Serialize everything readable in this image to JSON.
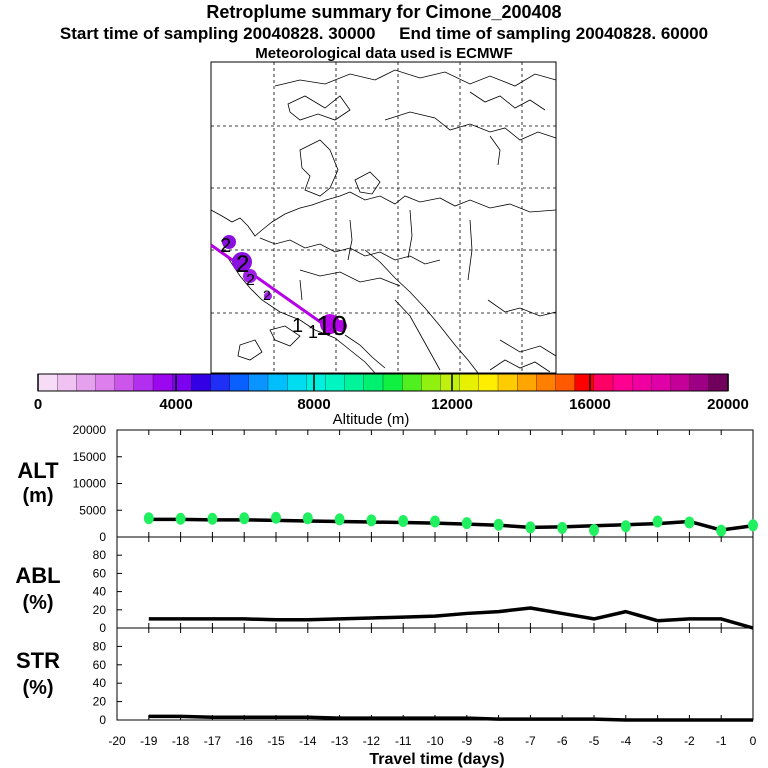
{
  "header": {
    "title": "Retroplume summary for Cimone_200408",
    "sampling_line": "Start time of sampling 20040828. 30000     End time of sampling 20040828. 60000",
    "met_line": "Meteorological data used is ECMWF"
  },
  "map": {
    "plume_color": "#b400e6",
    "plume_labels": [
      "2",
      "2",
      "2",
      "2",
      "1",
      "1",
      "10"
    ]
  },
  "colorbar": {
    "label": "Altitude (m)",
    "tick_labels": [
      "0",
      "4000",
      "8000",
      "12000",
      "16000",
      "20000"
    ],
    "range": [
      0,
      20000
    ],
    "colors": [
      "#f6dcf7",
      "#efc2f2",
      "#e6a1ee",
      "#dd7fec",
      "#cc55ec",
      "#b32ff0",
      "#9b07ef",
      "#7d00f0",
      "#3300e6",
      "#1f2ff5",
      "#0a60ff",
      "#0a94ff",
      "#00bfff",
      "#00dcf0",
      "#00f0e0",
      "#00f5c0",
      "#00f59a",
      "#00f070",
      "#10f040",
      "#50f020",
      "#90f010",
      "#c0f010",
      "#e6f000",
      "#ffee00",
      "#ffcc00",
      "#ffa500",
      "#ff8000",
      "#ff5a00",
      "#ff0000",
      "#ff0066",
      "#ff0090",
      "#f000a0",
      "#e000a8",
      "#c40099",
      "#9e0085",
      "#70005c"
    ]
  },
  "chart_data": [
    {
      "type": "scatter",
      "name": "ALT",
      "title": "ALT",
      "ylabel": "(m)",
      "xlabel": "Travel time (days)",
      "xlim": [
        -20,
        0
      ],
      "ylim": [
        0,
        20000
      ],
      "y_tick_labels": [
        "0",
        "5000",
        "10000",
        "15000",
        "20000"
      ],
      "x": [
        -19,
        -18,
        -17,
        -16,
        -15,
        -14,
        -13,
        -12,
        -11,
        -10,
        -9,
        -8,
        -7,
        -6,
        -5,
        -4,
        -3,
        -2,
        -1,
        0
      ],
      "series": [
        {
          "name": "mean altitude",
          "color": "#000000",
          "values": [
            3300,
            3300,
            3200,
            3200,
            3100,
            3000,
            2900,
            2800,
            2700,
            2600,
            2400,
            2200,
            1800,
            1900,
            2100,
            2300,
            2500,
            2900,
            1300,
            2100
          ]
        },
        {
          "name": "particles",
          "color": "#20f060",
          "values": [
            3500,
            3400,
            3400,
            3500,
            3600,
            3500,
            3300,
            3100,
            3000,
            2900,
            2600,
            2300,
            1800,
            1700,
            1300,
            2000,
            2900,
            2700,
            1200,
            2200
          ]
        }
      ]
    },
    {
      "type": "line",
      "name": "ABL",
      "title": "ABL",
      "ylabel": "(%)",
      "xlim": [
        -20,
        0
      ],
      "ylim": [
        0,
        100
      ],
      "y_tick_labels": [
        "0",
        "20",
        "40",
        "60",
        "80"
      ],
      "x": [
        -19,
        -18,
        -17,
        -16,
        -15,
        -14,
        -13,
        -12,
        -11,
        -10,
        -9,
        -8,
        -7,
        -6,
        -5,
        -4,
        -3,
        -2,
        -1,
        0
      ],
      "series": [
        {
          "name": "ABL fraction",
          "color": "#000000",
          "values": [
            10,
            10,
            10,
            10,
            9,
            9,
            10,
            11,
            12,
            13,
            16,
            18,
            22,
            16,
            10,
            18,
            8,
            10,
            10,
            0
          ]
        }
      ]
    },
    {
      "type": "line",
      "name": "STR",
      "title": "STR",
      "ylabel": "(%)",
      "xlim": [
        -20,
        0
      ],
      "ylim": [
        0,
        100
      ],
      "y_tick_labels": [
        "0",
        "20",
        "40",
        "60",
        "80"
      ],
      "x_tick_labels": [
        "-20",
        "-19",
        "-18",
        "-17",
        "-16",
        "-15",
        "-14",
        "-13",
        "-12",
        "-11",
        "-10",
        "-9",
        "-8",
        "-7",
        "-6",
        "-5",
        "-4",
        "-3",
        "-2",
        "-1",
        "0"
      ],
      "x": [
        -19,
        -18,
        -17,
        -16,
        -15,
        -14,
        -13,
        -12,
        -11,
        -10,
        -9,
        -8,
        -7,
        -6,
        -5,
        -4,
        -3,
        -2,
        -1,
        0
      ],
      "series": [
        {
          "name": "STR fraction",
          "color": "#000000",
          "values": [
            4,
            4,
            3,
            3,
            3,
            3,
            2,
            2,
            2,
            2,
            2,
            1,
            1,
            1,
            1,
            0,
            0,
            0,
            0,
            0
          ]
        }
      ]
    }
  ]
}
